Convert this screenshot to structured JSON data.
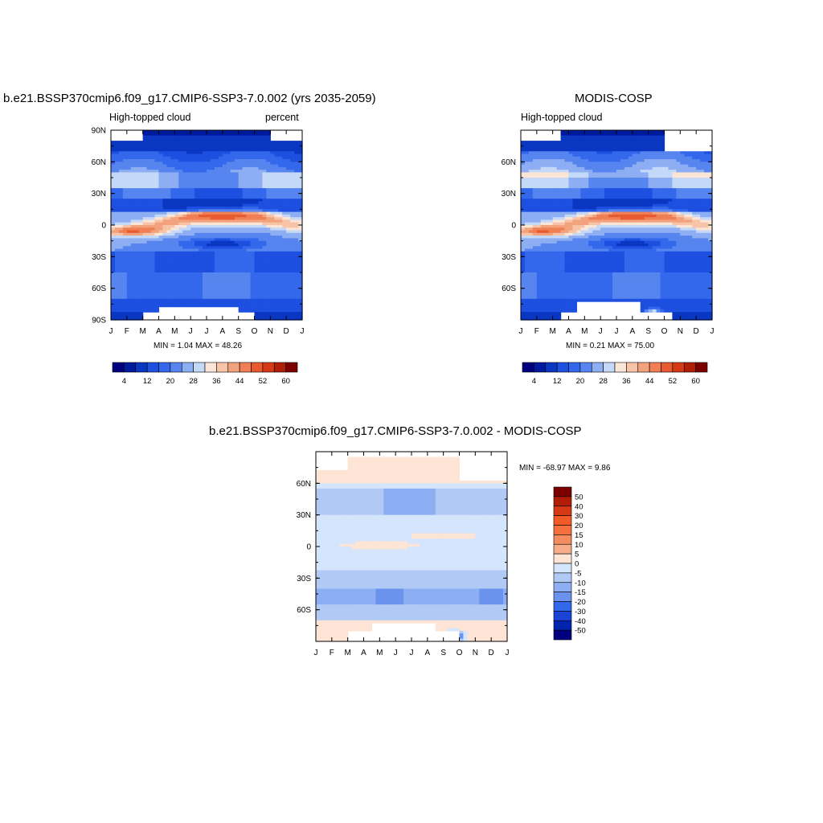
{
  "chart_data": [
    {
      "type": "heatmap",
      "title": "b.e21.BSSP370cmip6.f09_g17.CMIP6-SSP3-7.0.002 (yrs 2035-2059)",
      "subtitle_left": "High-topped cloud",
      "subtitle_right": "percent",
      "x_ticks": [
        "J",
        "F",
        "M",
        "A",
        "M",
        "J",
        "J",
        "A",
        "S",
        "O",
        "N",
        "D",
        "J"
      ],
      "y_ticks": [
        "90N",
        "60N",
        "30N",
        "0",
        "30S",
        "60S",
        "90S"
      ],
      "ylim": [
        -90,
        90
      ],
      "min_max_text": "MIN =   1.04 MAX =  48.26",
      "colorbar_labels": [
        "4",
        "12",
        "20",
        "28",
        "36",
        "44",
        "52",
        "60"
      ],
      "colorbar_levels": [
        2,
        4,
        8,
        12,
        16,
        20,
        24,
        28,
        32,
        36,
        40,
        44,
        48,
        52,
        56,
        60
      ],
      "zonal_profile": [
        {
          "lat": 85,
          "value": 3
        },
        {
          "lat": 75,
          "value": 6
        },
        {
          "lat": 62,
          "value": 14
        },
        {
          "lat": 45,
          "value": 24
        },
        {
          "lat": 35,
          "value": 14
        },
        {
          "lat": 20,
          "value": 8
        },
        {
          "lat": 10,
          "value": 34
        },
        {
          "lat": 5,
          "value": 40
        },
        {
          "lat": 0,
          "value": 34
        },
        {
          "lat": -5,
          "value": 26
        },
        {
          "lat": -15,
          "value": 6
        },
        {
          "lat": -30,
          "value": 12
        },
        {
          "lat": -50,
          "value": 16
        },
        {
          "lat": -65,
          "value": 14
        },
        {
          "lat": -78,
          "value": 6
        }
      ]
    },
    {
      "type": "heatmap",
      "title": "MODIS-COSP",
      "subtitle_left": "High-topped cloud",
      "x_ticks": [
        "J",
        "F",
        "M",
        "A",
        "M",
        "J",
        "J",
        "A",
        "S",
        "O",
        "N",
        "D",
        "J"
      ],
      "y_ticks": [
        "60N",
        "30N",
        "0",
        "30S",
        "60S"
      ],
      "ylim": [
        -90,
        90
      ],
      "min_max_text": "MIN =   0.21 MAX =  75.00",
      "colorbar_labels": [
        "4",
        "12",
        "20",
        "28",
        "36",
        "44",
        "52",
        "60"
      ],
      "colorbar_levels": [
        2,
        4,
        8,
        12,
        16,
        20,
        24,
        28,
        32,
        36,
        40,
        44,
        48,
        52,
        56,
        60
      ]
    },
    {
      "type": "heatmap",
      "title": "b.e21.BSSP370cmip6.f09_g17.CMIP6-SSP3-7.0.002 - MODIS-COSP",
      "x_ticks": [
        "J",
        "F",
        "M",
        "A",
        "M",
        "J",
        "J",
        "A",
        "S",
        "O",
        "N",
        "D",
        "J"
      ],
      "y_ticks": [
        "60N",
        "30N",
        "0",
        "30S",
        "60S"
      ],
      "ylim": [
        -90,
        90
      ],
      "min_max_text": "MIN = -68.97 MAX =   9.86",
      "colorbar_labels": [
        "50",
        "40",
        "30",
        "20",
        "15",
        "10",
        "5",
        "0",
        "-5",
        "-10",
        "-15",
        "-20",
        "-30",
        "-40",
        "-50"
      ],
      "colorbar_levels": [
        -50,
        -40,
        -30,
        -20,
        -15,
        -10,
        -5,
        0,
        5,
        10,
        15,
        20,
        30,
        40,
        50
      ]
    }
  ],
  "palette_seq": [
    "#00007f",
    "#001a9e",
    "#0a37c2",
    "#1d4fe0",
    "#3468ec",
    "#5785ef",
    "#8eaef3",
    "#c4d8f8",
    "#fbe5d6",
    "#f7c4a8",
    "#f2a37d",
    "#f07f55",
    "#e85a30",
    "#d63a14",
    "#b01e08",
    "#7d0000"
  ],
  "palette_div": [
    "#7d0000",
    "#b01e08",
    "#d63a14",
    "#f25a28",
    "#f4703c",
    "#f58c60",
    "#f7ad8a",
    "#fde4d4",
    "#d5e5fb",
    "#b0caf5",
    "#8eaef3",
    "#6b93ee",
    "#3468ec",
    "#1a44d6",
    "#0024b0",
    "#00007f"
  ]
}
